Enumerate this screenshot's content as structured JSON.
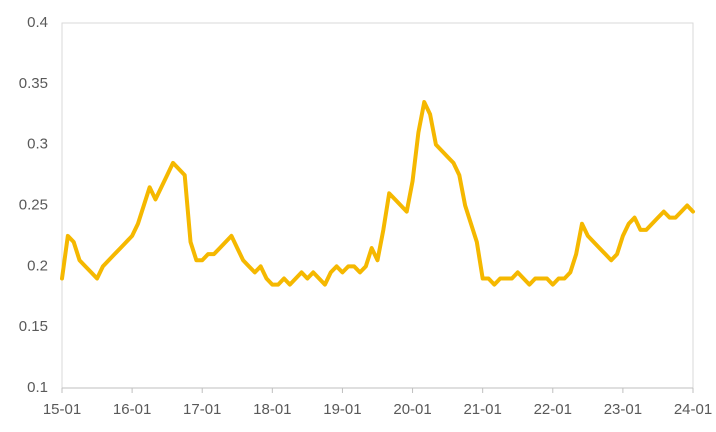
{
  "chart_data": {
    "type": "line",
    "categories": [
      "15-01",
      null,
      null,
      null,
      null,
      null,
      null,
      null,
      null,
      null,
      null,
      null,
      "16-01",
      null,
      null,
      null,
      null,
      null,
      null,
      null,
      null,
      null,
      null,
      null,
      "17-01",
      null,
      null,
      null,
      null,
      null,
      null,
      null,
      null,
      null,
      null,
      null,
      "18-01",
      null,
      null,
      null,
      null,
      null,
      null,
      null,
      null,
      null,
      null,
      null,
      "19-01",
      null,
      null,
      null,
      null,
      null,
      null,
      null,
      null,
      null,
      null,
      null,
      "20-01",
      null,
      null,
      null,
      null,
      null,
      null,
      null,
      null,
      null,
      null,
      null,
      "21-01",
      null,
      null,
      null,
      null,
      null,
      null,
      null,
      null,
      null,
      null,
      null,
      "22-01",
      null,
      null,
      null,
      null,
      null,
      null,
      null,
      null,
      null,
      null,
      null,
      "23-01",
      null,
      null,
      null,
      null,
      null,
      null,
      null,
      null,
      null,
      null,
      null,
      "24-01"
    ],
    "values": [
      0.19,
      0.225,
      0.22,
      0.205,
      0.2,
      0.195,
      0.19,
      0.2,
      0.205,
      0.21,
      0.215,
      0.22,
      0.225,
      0.235,
      0.25,
      0.265,
      0.255,
      0.265,
      0.275,
      0.285,
      0.28,
      0.275,
      0.22,
      0.205,
      0.205,
      0.21,
      0.21,
      0.215,
      0.22,
      0.225,
      0.215,
      0.205,
      0.2,
      0.195,
      0.2,
      0.19,
      0.185,
      0.185,
      0.19,
      0.185,
      0.19,
      0.195,
      0.19,
      0.195,
      0.19,
      0.185,
      0.195,
      0.2,
      0.195,
      0.2,
      0.2,
      0.195,
      0.2,
      0.215,
      0.205,
      0.23,
      0.26,
      0.255,
      0.25,
      0.245,
      0.27,
      0.31,
      0.335,
      0.325,
      0.3,
      0.295,
      0.29,
      0.285,
      0.275,
      0.25,
      0.235,
      0.22,
      0.19,
      0.19,
      0.185,
      0.19,
      0.19,
      0.19,
      0.195,
      0.19,
      0.185,
      0.19,
      0.19,
      0.19,
      0.185,
      0.19,
      0.19,
      0.195,
      0.21,
      0.235,
      0.225,
      0.22,
      0.215,
      0.21,
      0.205,
      0.21,
      0.225,
      0.235,
      0.24,
      0.23,
      0.23,
      0.235,
      0.24,
      0.245,
      0.24,
      0.24,
      0.245,
      0.25,
      0.245
    ],
    "color": "#f5b800",
    "ylim": [
      0.1,
      0.4
    ],
    "yticks": [
      0.1,
      0.15,
      0.2,
      0.25,
      0.3,
      0.35,
      0.4
    ],
    "grid": false
  }
}
